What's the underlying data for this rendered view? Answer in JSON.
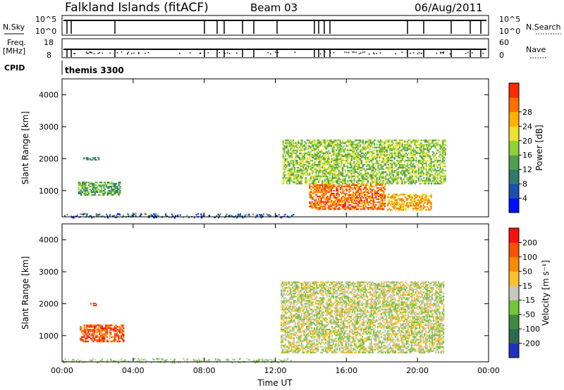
{
  "header": {
    "station": "Falkland Islands (fitACF)",
    "beam": "Beam 03",
    "date": "06/Aug/2011"
  },
  "nsky": {
    "label": "N.Sky",
    "ticks": [
      "10^5",
      "10^0"
    ],
    "right_label": "N.Search",
    "right_ticks": [
      "10^5",
      "10^0"
    ]
  },
  "freq": {
    "label_line1": "Freq.",
    "label_line2": "[MHz]",
    "ticks": [
      "18",
      "8"
    ],
    "right_label": "Nave",
    "right_ticks": [
      "60",
      "0"
    ]
  },
  "cpid": {
    "label": "CPID",
    "program": "themis 3300"
  },
  "chart_data": [
    {
      "type": "heatmap",
      "name": "power",
      "ylabel": "Slant Range [km]",
      "xlabel": "",
      "x_ticks": [
        "00:00",
        "04:00",
        "08:00",
        "12:00",
        "16:00",
        "20:00",
        "00:00"
      ],
      "y_ticks": [
        1000,
        2000,
        3000,
        4000
      ],
      "xlim_hours": [
        0,
        24
      ],
      "ylim_km": [
        180,
        4500
      ],
      "colorbar": {
        "label": "Power [dB]",
        "ticks": [
          "4",
          "8",
          "12",
          "16",
          "20",
          "24",
          "28"
        ],
        "colors": [
          "#0010ff",
          "#1a4fb0",
          "#2f7a6a",
          "#4ea050",
          "#8ed13a",
          "#f0e030",
          "#ffb000",
          "#ff7000",
          "#ff2a00"
        ]
      },
      "regions": [
        {
          "t": [
            0.9,
            3.3
          ],
          "r": [
            850,
            1280
          ],
          "level": 3
        },
        {
          "t": [
            1.2,
            2.1
          ],
          "r": [
            1950,
            2050
          ],
          "level": 2
        },
        {
          "t": [
            12.4,
            21.6
          ],
          "r": [
            1200,
            2600
          ],
          "level": 4
        },
        {
          "t": [
            13.9,
            18.2
          ],
          "r": [
            400,
            1200
          ],
          "level": 7
        },
        {
          "t": [
            18.3,
            20.8
          ],
          "r": [
            380,
            900
          ],
          "level": 6
        }
      ]
    },
    {
      "type": "heatmap",
      "name": "velocity",
      "ylabel": "Slant Range [km]",
      "xlabel": "Time UT",
      "x_ticks": [
        "00:00",
        "04:00",
        "08:00",
        "12:00",
        "16:00",
        "20:00",
        "00:00"
      ],
      "y_ticks": [
        1000,
        2000,
        3000,
        4000
      ],
      "xlim_hours": [
        0,
        24
      ],
      "ylim_km": [
        180,
        4500
      ],
      "colorbar": {
        "label": "Velocity [m s⁻¹]",
        "ticks": [
          "200",
          "100",
          "50",
          "15",
          "-15",
          "-50",
          "-100",
          "-200"
        ],
        "colors": [
          "#2030c0",
          "#2a6a50",
          "#3e8a3e",
          "#74c43a",
          "#c8c8c0",
          "#ffc030",
          "#ff8a00",
          "#ff5000",
          "#ff1010"
        ]
      },
      "regions": [
        {
          "t": [
            1.0,
            3.5
          ],
          "r": [
            800,
            1350
          ],
          "level": 7
        },
        {
          "t": [
            1.6,
            1.95
          ],
          "r": [
            1930,
            2030
          ],
          "level": 8
        },
        {
          "t": [
            12.3,
            21.5
          ],
          "r": [
            450,
            2700
          ],
          "level": 4
        }
      ]
    }
  ]
}
